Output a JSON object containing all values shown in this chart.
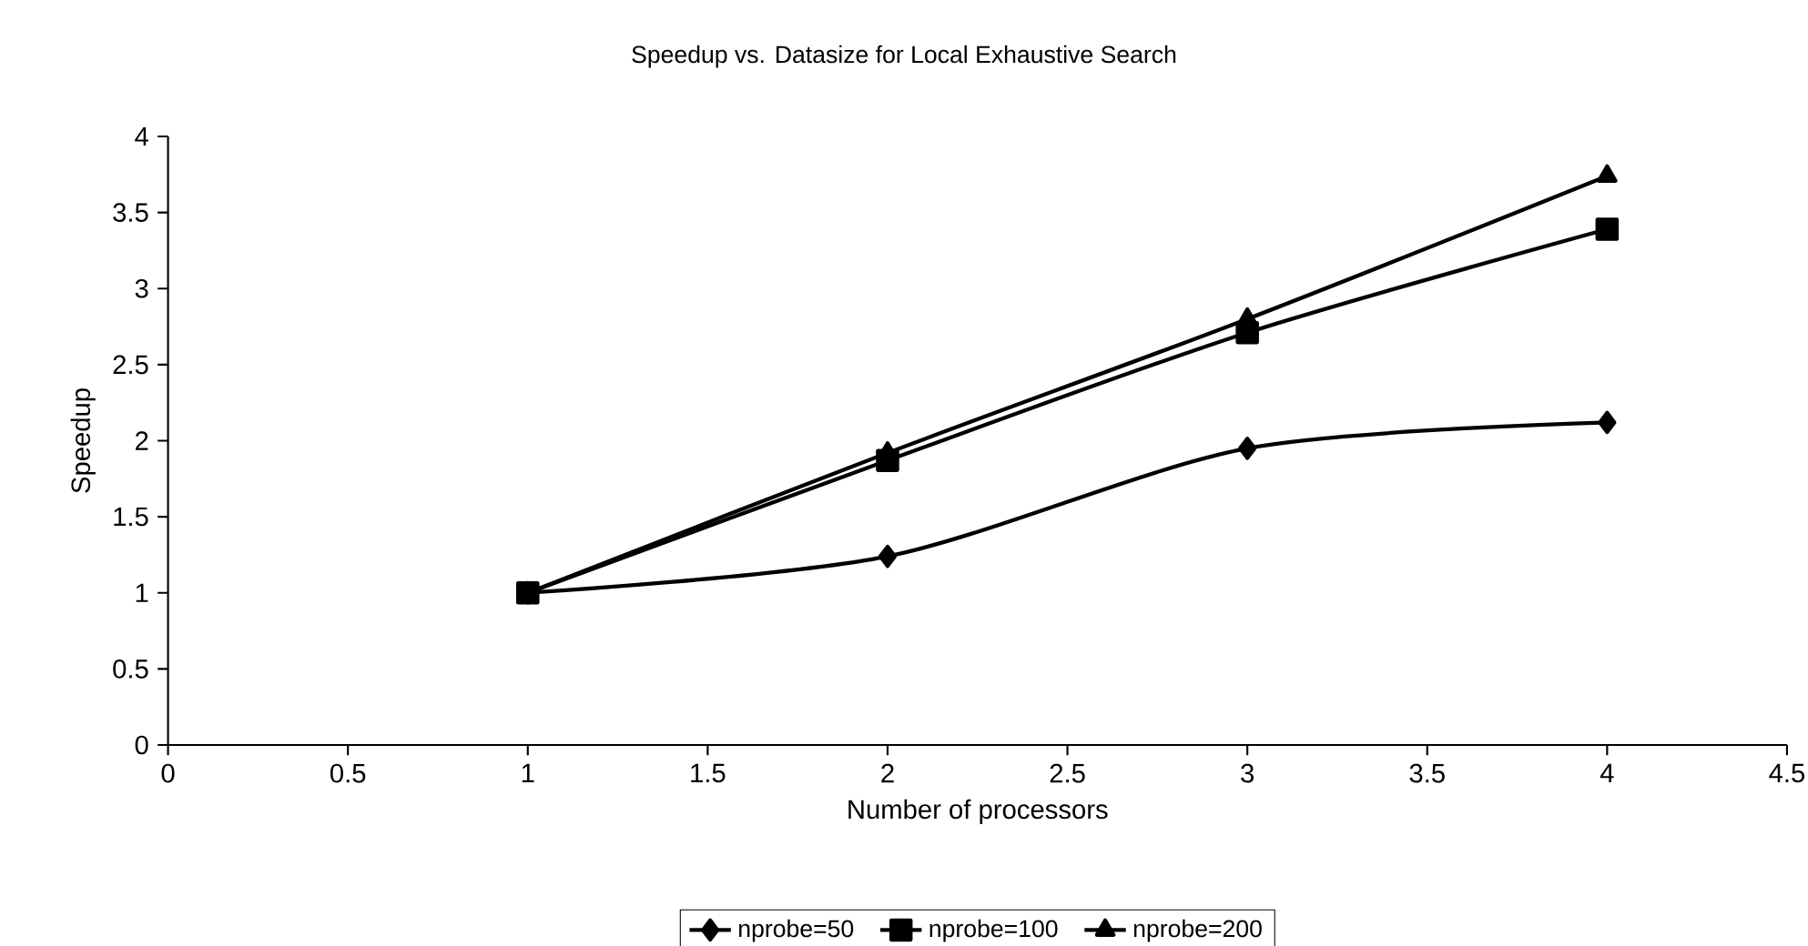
{
  "chart_data": {
    "type": "line",
    "title": "Speedup vs. Datasize for Local Exhaustive Search",
    "xlabel": "Number of processors",
    "ylabel": "Speedup",
    "x": [
      1,
      2,
      3,
      4
    ],
    "series": [
      {
        "name": "nprobe=50",
        "color": "#000000",
        "marker": "diamond",
        "values": [
          1,
          1.24,
          1.95,
          2.12
        ]
      },
      {
        "name": "nprobe=100",
        "color": "#000000",
        "marker": "square",
        "values": [
          1,
          1.87,
          2.71,
          3.39
        ]
      },
      {
        "name": "nprobe=200",
        "color": "#000000",
        "marker": "triangle",
        "values": [
          1,
          1.92,
          2.8,
          3.74
        ]
      }
    ],
    "xlim": [
      0,
      4.5
    ],
    "xticks": [
      0,
      0.5,
      1,
      1.5,
      2,
      2.5,
      3,
      3.5,
      4,
      4.5
    ],
    "ylim": [
      0,
      4
    ],
    "yticks": [
      0,
      0.5,
      1,
      1.5,
      2,
      2.5,
      3,
      3.5,
      4
    ],
    "grid": false,
    "legend": "bottom",
    "line_style": "solid"
  }
}
